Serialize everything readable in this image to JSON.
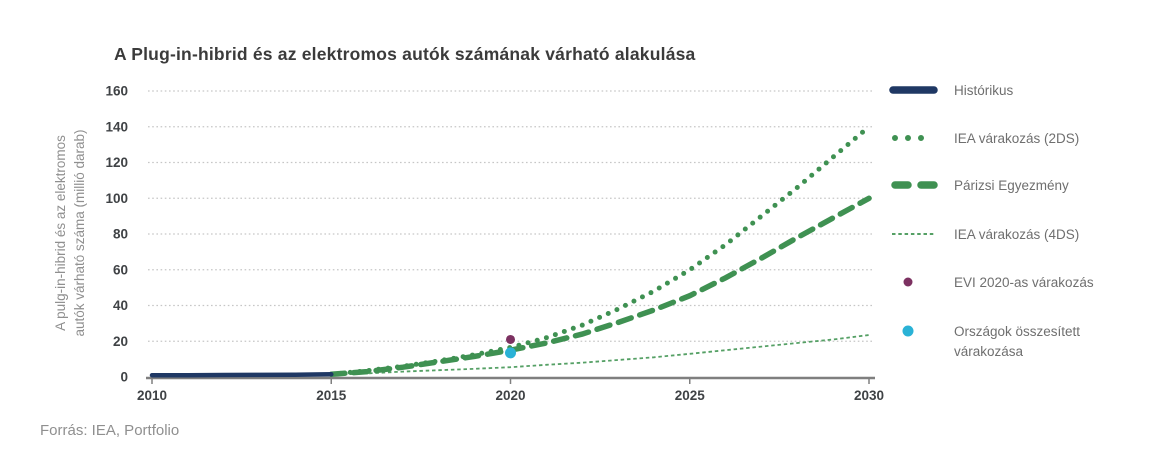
{
  "title": "A Plug-in-hibrid és az elektromos autók számának várható alakulása",
  "source": "Forrás: IEA, Portfolio",
  "chart_data": {
    "type": "line",
    "title": "A Plug-in-hibrid és az elektromos autók számának várható alakulása",
    "xlabel": "",
    "ylabel": "A pulg-in-hibrid és az elektromos autók várható száma (millió darab)",
    "ylabel_line1": "A pulg-in-hibrid és az elektromos",
    "ylabel_line2": "autók várható száma (millió darab)",
    "xlim": [
      2010,
      2030
    ],
    "ylim": [
      0,
      160
    ],
    "xticks": [
      2010,
      2015,
      2020,
      2025,
      2030
    ],
    "yticks": [
      0,
      20,
      40,
      60,
      80,
      100,
      120,
      140,
      160
    ],
    "grid": "horizontal-dotted",
    "legend_position": "right",
    "colors": {
      "grid": "#c6c6c6",
      "axis": "#7f7f7f",
      "tick_label": "#3f4245",
      "title": "#3b3b3b",
      "navy": "#1f3864",
      "green": "#3f9152",
      "light_green": "#55a065",
      "purple": "#7c3161",
      "cyan": "#2ab2d6"
    },
    "series": [
      {
        "name": "Histórikus",
        "style": "solid",
        "color": "#1f3864",
        "width": 4.5,
        "points": [
          [
            2010,
            1
          ],
          [
            2011,
            1
          ],
          [
            2012,
            1.1
          ],
          [
            2013,
            1.2
          ],
          [
            2014,
            1.3
          ],
          [
            2015,
            1.5
          ]
        ]
      },
      {
        "name": "IEA várakozás (2DS)",
        "style": "dotted",
        "color": "#3f9152",
        "width": 5,
        "points": [
          [
            2015,
            1.5
          ],
          [
            2016,
            3.5
          ],
          [
            2017,
            6
          ],
          [
            2018,
            9
          ],
          [
            2019,
            12.5
          ],
          [
            2020,
            16.5
          ],
          [
            2021,
            22
          ],
          [
            2022,
            29
          ],
          [
            2023,
            38
          ],
          [
            2024,
            48
          ],
          [
            2025,
            60
          ],
          [
            2026,
            74
          ],
          [
            2027,
            90
          ],
          [
            2028,
            106
          ],
          [
            2029,
            123
          ],
          [
            2030,
            140
          ]
        ]
      },
      {
        "name": "Párizsi Egyezmény",
        "style": "dashed",
        "color": "#3f9152",
        "width": 5.5,
        "points": [
          [
            2015,
            1.5
          ],
          [
            2016,
            3
          ],
          [
            2017,
            5.5
          ],
          [
            2018,
            8.5
          ],
          [
            2019,
            11.5
          ],
          [
            2020,
            15
          ],
          [
            2021,
            19
          ],
          [
            2022,
            24
          ],
          [
            2023,
            30.5
          ],
          [
            2024,
            37.5
          ],
          [
            2025,
            45.5
          ],
          [
            2026,
            55.5
          ],
          [
            2027,
            66.5
          ],
          [
            2028,
            78
          ],
          [
            2029,
            89
          ],
          [
            2030,
            100
          ]
        ]
      },
      {
        "name": "IEA várakozás (4DS)",
        "style": "thin-dashed",
        "color": "#55a065",
        "width": 1.8,
        "points": [
          [
            2015,
            1.2
          ],
          [
            2016,
            2
          ],
          [
            2017,
            3
          ],
          [
            2018,
            3.8
          ],
          [
            2019,
            4.6
          ],
          [
            2020,
            5.5
          ],
          [
            2021,
            6.8
          ],
          [
            2022,
            8
          ],
          [
            2023,
            9.5
          ],
          [
            2024,
            11
          ],
          [
            2025,
            13
          ],
          [
            2026,
            15
          ],
          [
            2027,
            17
          ],
          [
            2028,
            19
          ],
          [
            2029,
            21
          ],
          [
            2030,
            23.5
          ]
        ]
      },
      {
        "name": "EVI 2020-as várakozás",
        "style": "point",
        "color": "#7c3161",
        "radius": 4.5,
        "points": [
          [
            2020,
            21
          ]
        ]
      },
      {
        "name": "Országok összesített várakozása",
        "style": "point",
        "color": "#2ab2d6",
        "radius": 5.5,
        "points": [
          [
            2020,
            13.5
          ]
        ]
      }
    ]
  }
}
